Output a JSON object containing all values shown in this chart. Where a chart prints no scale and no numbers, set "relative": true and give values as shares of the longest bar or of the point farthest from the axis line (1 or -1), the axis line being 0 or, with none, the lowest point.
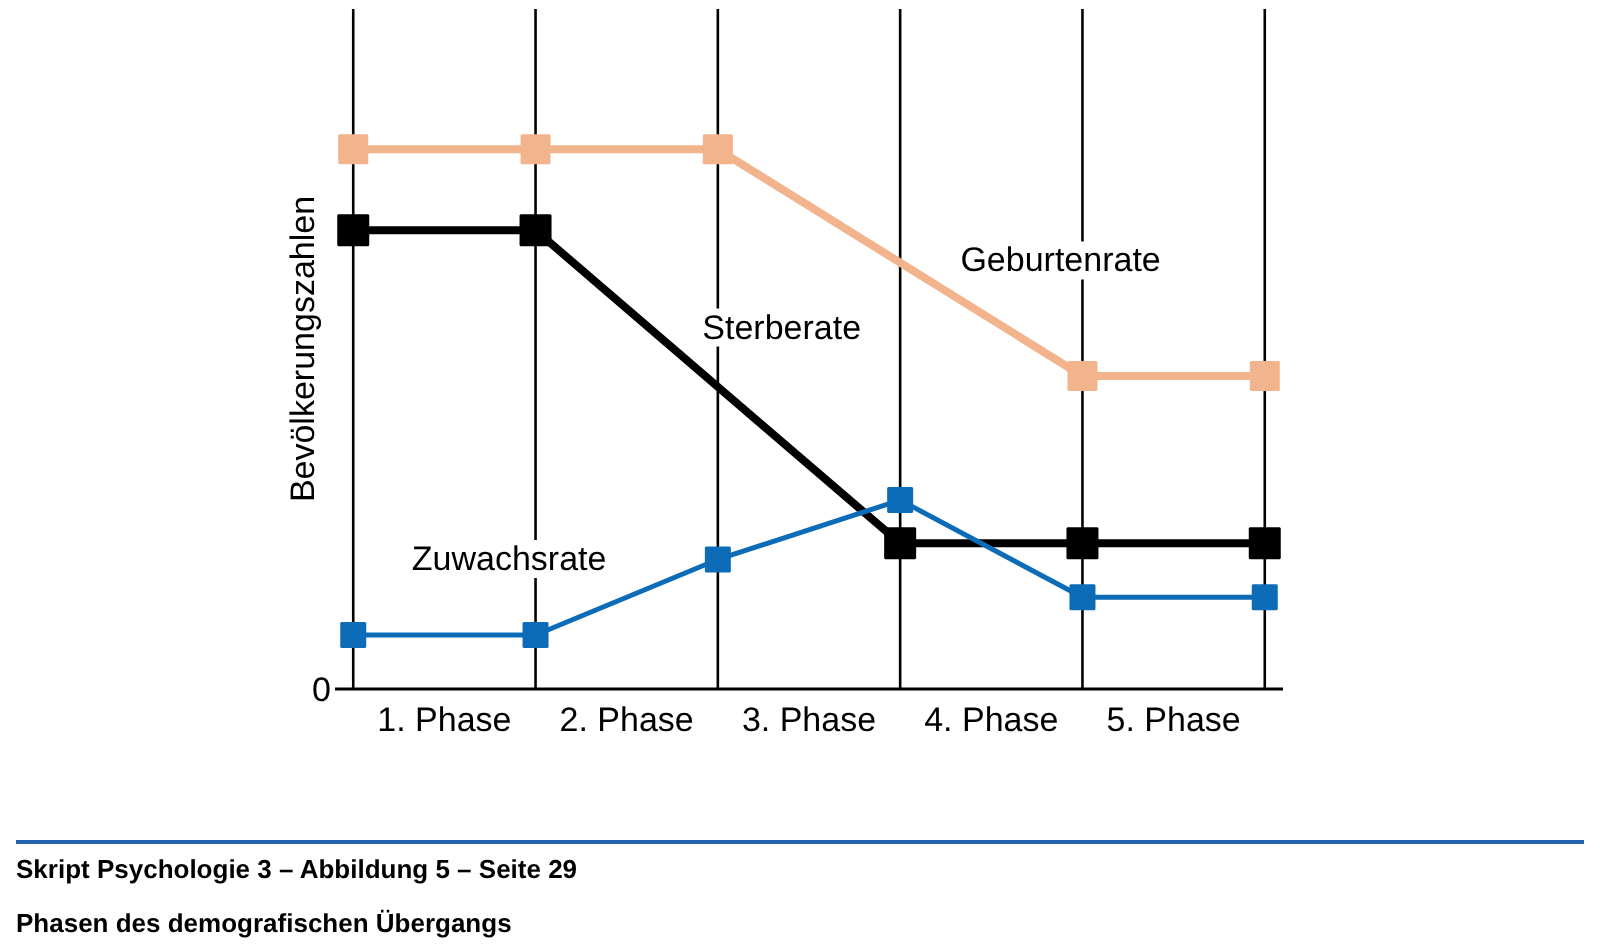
{
  "chart_data": {
    "type": "line",
    "title": "Phasen des demografischen Übergangs",
    "ylabel": "Bevölkerungszahlen",
    "relative": true,
    "xlim": [
      -0.1,
      5.1
    ],
    "xticks": [
      {
        "value": 0.5,
        "label": "1. Phase"
      },
      {
        "value": 1.5,
        "label": "2. Phase"
      },
      {
        "value": 2.5,
        "label": "3. Phase"
      },
      {
        "value": 3.5,
        "label": "4. Phase"
      },
      {
        "value": 4.5,
        "label": "5. Phase"
      }
    ],
    "series": [
      {
        "name": "Geburtenrate",
        "color": "#f2b48c",
        "x": [
          0,
          1,
          2,
          4,
          5
        ],
        "values": [
          1,
          1,
          1,
          0.58,
          0.58
        ]
      },
      {
        "name": "Sterberate",
        "color": "#000000",
        "x": [
          0,
          1,
          3,
          4,
          5
        ],
        "values": [
          0.85,
          0.85,
          0.27,
          0.27,
          0.27
        ]
      },
      {
        "name": "Zuwachsrate",
        "color": "#0d6cb8",
        "x": [
          0,
          1,
          2,
          3,
          4,
          5
        ],
        "values": [
          0.1,
          0.1,
          0.24,
          0.35,
          0.17,
          0.17
        ]
      }
    ],
    "ref_lines": [
      {
        "axis": "x",
        "value": 0,
        "color": "#000000"
      },
      {
        "axis": "x",
        "value": 1,
        "color": "#000000"
      },
      {
        "axis": "x",
        "value": 2,
        "color": "#000000"
      },
      {
        "axis": "x",
        "value": 3,
        "color": "#000000"
      },
      {
        "axis": "x",
        "value": 4,
        "color": "#000000"
      },
      {
        "axis": "x",
        "value": 5,
        "color": "#000000"
      }
    ],
    "annotations": [
      "0",
      "Skript Psychologie 3 – Abbildung 5 – Seite 29"
    ],
    "marker": "square",
    "line_style": "solid"
  }
}
